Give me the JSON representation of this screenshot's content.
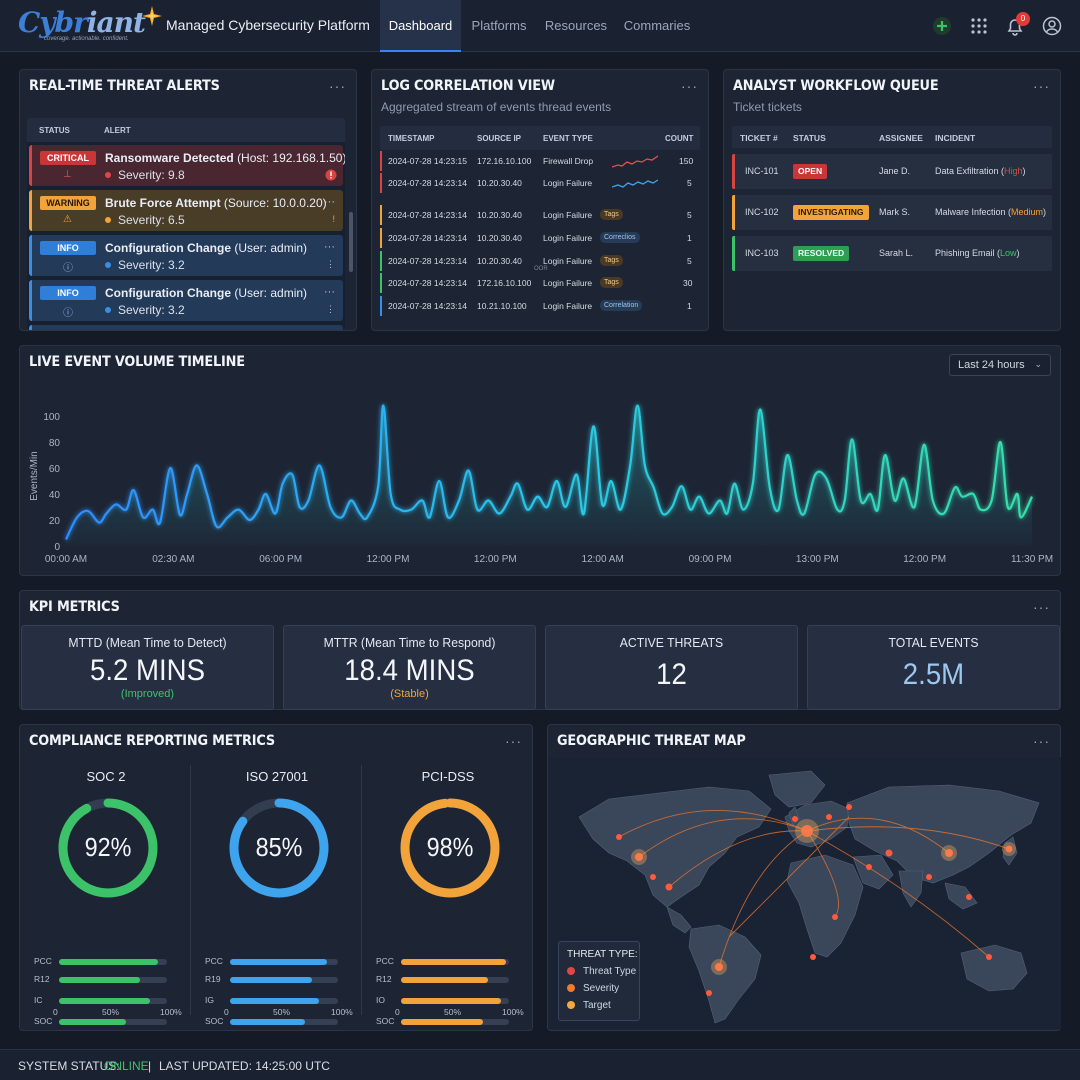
{
  "header": {
    "logo_text": "Cybriant",
    "logo_tagline": "coverage. actionable. confident.",
    "app_title": "Managed Cybersecurity Platform",
    "tabs": [
      "Dashboard",
      "Platforms",
      "Resources",
      "Commaries"
    ],
    "active_tab": "Dashboard",
    "notification_count": "0",
    "icons": [
      "plus-icon",
      "grid-icon",
      "bell-icon",
      "user-icon"
    ]
  },
  "alerts": {
    "title": "REAL-TIME THREAT ALERTS",
    "menu": "···",
    "columns": [
      "STATUS",
      "ALERT"
    ],
    "items": [
      {
        "level": "CRITICAL",
        "name": "Ransomware Detected",
        "detail": "(Host: 192.168.1.50)",
        "severity": "Severity: 9.8",
        "color": "#d84343"
      },
      {
        "level": "WARNING",
        "name": "Brute Force Attempt",
        "detail": "(Source: 10.0.0.20)",
        "severity": "Severity: 6.5",
        "color": "#f2a33a"
      },
      {
        "level": "INFO",
        "name": "Configuration Change",
        "detail": "(User: admin)",
        "severity": "Severity: 3.2",
        "color": "#3b8ee6"
      },
      {
        "level": "INFO",
        "name": "Configuration Change",
        "detail": "(User: admin)",
        "severity": "Severity: 3.2",
        "color": "#3b8ee6"
      }
    ]
  },
  "log": {
    "title": "LOG CORRELATION VIEW",
    "subtitle": "Aggregated stream of events thread events",
    "menu": "···",
    "columns": [
      "TIMESTAMP",
      "SOURCE IP",
      "EVENT TYPE",
      "COUNT"
    ],
    "separator": "OOR",
    "rows": [
      {
        "ts": "2024-07-28 14:23:15",
        "ip": "172.16.10.100",
        "type": "Firewall Drop",
        "tag": "",
        "count": "150",
        "color": "#d84343"
      },
      {
        "ts": "2024-07-28 14:23:14",
        "ip": "10.20.30.40",
        "type": "Login Failure",
        "tag": "",
        "count": "5",
        "color": "#d84343"
      },
      {
        "ts": "2024-07-28 14:23:14",
        "ip": "10.20.30.40",
        "type": "Login Failure",
        "tag": "Tags",
        "count": "5",
        "color": "#f2a33a"
      },
      {
        "ts": "2024-07-28 14:23:14",
        "ip": "10.20.30.40",
        "type": "Login Failure",
        "tag": "Correclios",
        "count": "1",
        "color": "#f2a33a"
      },
      {
        "ts": "2024-07-28 14:23:14",
        "ip": "10.20.30.40",
        "type": "Login Failure",
        "tag": "Tags",
        "count": "5",
        "color": "#3cc36a"
      },
      {
        "ts": "2024-07-28 14:23:14",
        "ip": "172.16.10.100",
        "type": "Login Failure",
        "tag": "Tags",
        "count": "30",
        "color": "#3cc36a"
      },
      {
        "ts": "2024-07-28 14:23:14",
        "ip": "10.21.10.100",
        "type": "Login Failure",
        "tag": "Correlation",
        "count": "1",
        "color": "#3b8ee6"
      }
    ]
  },
  "workflow": {
    "title": "ANALYST WORKFLOW QUEUE",
    "subtitle": "Ticket tickets",
    "menu": "···",
    "columns": [
      "TICKET #",
      "STATUS",
      "ASSIGNEE",
      "INCIDENT"
    ],
    "rows": [
      {
        "ticket": "INC-101",
        "status": "OPEN",
        "assignee": "Jane D.",
        "incident": "Data Exfiltration (",
        "priority": "High",
        "close": ")",
        "color": "#d84343"
      },
      {
        "ticket": "INC-102",
        "status": "INVESTIGATING",
        "assignee": "Mark S.",
        "incident": "Malware Infection (",
        "priority": "Medium",
        "close": ")",
        "color": "#f2a33a"
      },
      {
        "ticket": "INC-103",
        "status": "RESOLVED",
        "assignee": "Sarah L.",
        "incident": "Phishing Email (",
        "priority": "Low",
        "close": ")",
        "color": "#3cc36a"
      }
    ]
  },
  "timeline": {
    "title": "LIVE EVENT VOLUME TIMELINE",
    "range_select": "Last 24 hours",
    "menu": "···"
  },
  "chart_data": {
    "type": "area",
    "title": "LIVE EVENT VOLUME TIMELINE",
    "ylabel": "Events/Min",
    "xlabel": "",
    "ylim": [
      0,
      100
    ],
    "yticks": [
      0,
      20,
      40,
      60,
      80,
      100
    ],
    "xticks": [
      "00:00 AM",
      "02:30 AM",
      "06:00 PM",
      "12:00 PM",
      "12:00 PM",
      "12:00 AM",
      "09:00 PM",
      "13:00 PM",
      "12:00 PM",
      "11:30 PM"
    ],
    "x": [
      0,
      0.5,
      1,
      1.5,
      2,
      2.5,
      3,
      3.5,
      4,
      4.5,
      5,
      5.5,
      6,
      6.5,
      7,
      7.5,
      8,
      8.5,
      9
    ],
    "series": [
      {
        "values": [
          [
            0.0,
            5
          ],
          [
            0.15,
            22
          ],
          [
            0.3,
            27
          ],
          [
            0.45,
            18
          ],
          [
            0.55,
            25
          ],
          [
            0.68,
            32
          ],
          [
            0.82,
            28
          ],
          [
            0.92,
            43
          ],
          [
            1.05,
            22
          ],
          [
            1.18,
            28
          ],
          [
            1.28,
            18
          ],
          [
            1.42,
            60
          ],
          [
            1.55,
            24
          ],
          [
            1.65,
            40
          ],
          [
            1.78,
            62
          ],
          [
            1.92,
            40
          ],
          [
            2.05,
            15
          ],
          [
            2.2,
            22
          ],
          [
            2.35,
            28
          ],
          [
            2.5,
            20
          ],
          [
            2.62,
            28
          ],
          [
            2.72,
            40
          ],
          [
            2.85,
            25
          ],
          [
            2.95,
            48
          ],
          [
            3.08,
            55
          ],
          [
            3.18,
            30
          ],
          [
            3.3,
            35
          ],
          [
            3.45,
            62
          ],
          [
            3.6,
            30
          ],
          [
            3.75,
            22
          ],
          [
            3.88,
            35
          ],
          [
            4.0,
            25
          ],
          [
            4.1,
            22
          ],
          [
            4.25,
            46
          ],
          [
            4.32,
            108
          ],
          [
            4.42,
            40
          ],
          [
            4.55,
            28
          ],
          [
            4.7,
            28
          ],
          [
            4.85,
            35
          ],
          [
            4.95,
            22
          ],
          [
            5.08,
            50
          ],
          [
            5.2,
            22
          ],
          [
            5.35,
            35
          ],
          [
            5.48,
            58
          ],
          [
            5.6,
            28
          ],
          [
            5.75,
            35
          ],
          [
            5.9,
            25
          ],
          [
            6.05,
            38
          ],
          [
            6.15,
            48
          ],
          [
            6.28,
            28
          ],
          [
            6.42,
            38
          ],
          [
            6.55,
            30
          ],
          [
            6.68,
            50
          ],
          [
            6.8,
            30
          ],
          [
            6.95,
            55
          ],
          [
            7.05,
            25
          ],
          [
            7.18,
            92
          ],
          [
            7.3,
            32
          ],
          [
            7.42,
            50
          ],
          [
            7.55,
            28
          ],
          [
            7.68,
            62
          ],
          [
            7.78,
            108
          ],
          [
            7.88,
            62
          ],
          [
            8.0,
            45
          ],
          [
            8.12,
            25
          ],
          [
            8.25,
            30
          ],
          [
            8.38,
            46
          ],
          [
            8.5,
            28
          ],
          [
            8.62,
            38
          ],
          [
            8.75,
            25
          ],
          [
            8.9,
            35
          ],
          [
            9.0,
            25
          ],
          [
            9.1,
            48
          ],
          [
            9.22,
            28
          ],
          [
            9.35,
            48
          ],
          [
            9.45,
            105
          ],
          [
            9.58,
            45
          ],
          [
            9.7,
            28
          ],
          [
            9.82,
            70
          ],
          [
            9.95,
            35
          ],
          [
            10.05,
            25
          ],
          [
            10.2,
            55
          ],
          [
            10.35,
            52
          ],
          [
            10.5,
            28
          ],
          [
            10.6,
            35
          ],
          [
            10.7,
            82
          ],
          [
            10.82,
            35
          ],
          [
            10.95,
            40
          ],
          [
            11.05,
            28
          ],
          [
            11.15,
            70
          ],
          [
            11.28,
            35
          ],
          [
            11.4,
            52
          ],
          [
            11.55,
            30
          ],
          [
            11.68,
            78
          ],
          [
            11.8,
            35
          ],
          [
            11.95,
            25
          ],
          [
            12.1,
            45
          ],
          [
            12.2,
            38
          ],
          [
            12.35,
            40
          ],
          [
            12.45,
            28
          ],
          [
            12.6,
            35
          ],
          [
            12.72,
            80
          ],
          [
            12.82,
            30
          ],
          [
            12.95,
            40
          ],
          [
            13.0,
            22
          ],
          [
            13.15,
            38
          ]
        ]
      }
    ]
  },
  "kpi": {
    "title": "KPI METRICS",
    "menu": "···",
    "cards": [
      {
        "label": "MTTD (Mean Time to Detect)",
        "value": "5.2 MINS",
        "note": "(Improved)",
        "note_color": "#3cc36a",
        "value_color": "#f4f6fa"
      },
      {
        "label": "MTTR (Mean Time to Respond)",
        "value": "18.4 MINS",
        "note": "(Stable)",
        "note_color": "#f2a33a",
        "value_color": "#f4f6fa"
      },
      {
        "label": "ACTIVE THREATS",
        "value": "12",
        "note": "",
        "note_color": "#f4f6fa",
        "value_color": "#f4f6fa"
      },
      {
        "label": "TOTAL EVENTS",
        "value": "2.5M",
        "note": "",
        "note_color": "#f4f6fa",
        "value_color": "#9dc6f0"
      }
    ]
  },
  "compliance": {
    "title": "COMPLIANCE REPORTING METRICS",
    "menu": "···",
    "axis": [
      "0",
      "50%",
      "100%"
    ],
    "frameworks": [
      {
        "name": "SOC 2",
        "percent": "92%",
        "value": 92,
        "color": "#3cc36a",
        "bars": [
          {
            "label": "PCC",
            "value": 92
          },
          {
            "label": "R12",
            "value": 75
          },
          {
            "label": "IC",
            "value": 84
          },
          {
            "label": "SOC",
            "value": 62
          }
        ]
      },
      {
        "name": "ISO 27001",
        "percent": "85%",
        "value": 85,
        "color": "#3ea4ee",
        "bars": [
          {
            "label": "PCC",
            "value": 90
          },
          {
            "label": "R19",
            "value": 76
          },
          {
            "label": "IG",
            "value": 82
          },
          {
            "label": "SOC",
            "value": 69
          }
        ]
      },
      {
        "name": "PCI-DSS",
        "percent": "98%",
        "value": 98,
        "color": "#f2a33a",
        "bars": [
          {
            "label": "PCC",
            "value": 97
          },
          {
            "label": "R12",
            "value": 81
          },
          {
            "label": "IO",
            "value": 93
          },
          {
            "label": "SOC",
            "value": 76
          }
        ]
      }
    ]
  },
  "map": {
    "title": "GEOGRAPHIC THREAT MAP",
    "menu": "···",
    "legend_title": "THREAT TYPE:",
    "legend": [
      {
        "label": "Threat Type",
        "color": "#e04646"
      },
      {
        "label": "Severity",
        "color": "#f07a2e"
      },
      {
        "label": "Target",
        "color": "#f5a83c"
      }
    ]
  },
  "footer": {
    "status_label": "SYSTEM STATUS:",
    "status_value": "ONLINE",
    "separator": "|",
    "updated": "LAST UPDATED: 14:25:00 UTC"
  }
}
